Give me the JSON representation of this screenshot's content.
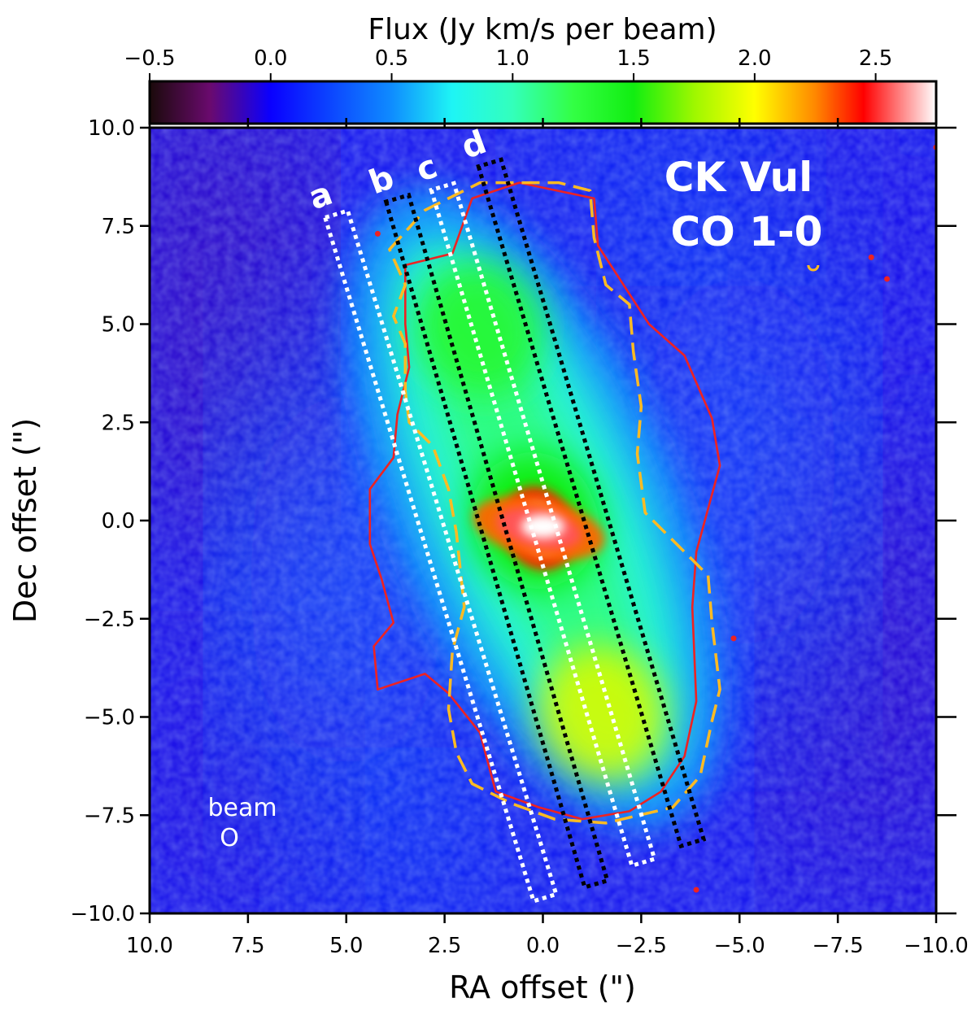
{
  "chart_data": {
    "type": "heatmap",
    "title": "CK Vul CO 1-0",
    "title_lines": [
      "CK Vul",
      "CO 1-0"
    ],
    "xlabel": "RA offset (\")",
    "ylabel": "Dec offset (\")",
    "xlim": [
      10.0,
      -10.0
    ],
    "ylim": [
      -10.0,
      10.0
    ],
    "x_ticks": [
      10.0,
      7.5,
      5.0,
      2.5,
      0.0,
      -2.5,
      -5.0,
      -7.5,
      -10.0
    ],
    "x_tick_labels": [
      "10.0",
      "7.5",
      "5.0",
      "2.5",
      "0.0",
      "−2.5",
      "−5.0",
      "−7.5",
      "−10.0"
    ],
    "y_ticks": [
      10.0,
      7.5,
      5.0,
      2.5,
      0.0,
      -2.5,
      -5.0,
      -7.5,
      -10.0
    ],
    "y_tick_labels": [
      "10.0",
      "7.5",
      "5.0",
      "2.5",
      "0.0",
      "−2.5",
      "−5.0",
      "−7.5",
      "−10.0"
    ],
    "colorbar": {
      "label": "Flux (Jy km/s per beam)",
      "range": [
        -0.5,
        2.75
      ],
      "ticks": [
        -0.5,
        0.0,
        0.5,
        1.0,
        1.5,
        2.0,
        2.5
      ],
      "tick_labels": [
        "−0.5",
        "0.0",
        "0.5",
        "1.0",
        "1.5",
        "2.0",
        "2.5"
      ],
      "stops": [
        {
          "v": -0.5,
          "color": "#1a0a0a"
        },
        {
          "v": -0.25,
          "color": "#6a0a6e"
        },
        {
          "v": 0.0,
          "color": "#0a00ff"
        },
        {
          "v": 0.5,
          "color": "#0f8cff"
        },
        {
          "v": 0.75,
          "color": "#1ef5f5"
        },
        {
          "v": 1.0,
          "color": "#33ffbb"
        },
        {
          "v": 1.25,
          "color": "#33ff44"
        },
        {
          "v": 1.5,
          "color": "#11ee11"
        },
        {
          "v": 1.75,
          "color": "#9ef700"
        },
        {
          "v": 2.0,
          "color": "#ffff00"
        },
        {
          "v": 2.25,
          "color": "#ff8800"
        },
        {
          "v": 2.45,
          "color": "#ff0000"
        },
        {
          "v": 2.75,
          "color": "#ffffff"
        }
      ]
    },
    "slits": [
      {
        "label": "a",
        "color": "#ffffff",
        "from": [
          5.25,
          7.8
        ],
        "to": [
          -0.05,
          -9.6
        ]
      },
      {
        "label": "b",
        "color": "#000000",
        "from": [
          3.7,
          8.2
        ],
        "to": [
          -1.35,
          -9.25
        ]
      },
      {
        "label": "c",
        "color": "#ffffff",
        "from": [
          2.55,
          8.5
        ],
        "to": [
          -2.55,
          -8.7
        ]
      },
      {
        "label": "d",
        "color": "#000000",
        "from": [
          1.35,
          9.1
        ],
        "to": [
          -3.8,
          -8.2
        ]
      }
    ],
    "slit_width_arcsec": 0.6,
    "beam": {
      "label": "beam",
      "symbol": "O",
      "x": 8.0,
      "y": -8.0,
      "major": 0.5,
      "minor": 0.45
    },
    "contours": [
      {
        "name": "red-contour",
        "color": "#ee2222",
        "style": "solid",
        "points": [
          [
            2.3,
            6.8
          ],
          [
            1.8,
            8.2
          ],
          [
            0.6,
            8.6
          ],
          [
            -1.3,
            8.2
          ],
          [
            -1.4,
            7.0
          ],
          [
            -2.7,
            5.0
          ],
          [
            -3.6,
            4.2
          ],
          [
            -4.3,
            2.6
          ],
          [
            -4.5,
            1.4
          ],
          [
            -3.9,
            -0.8
          ],
          [
            -3.8,
            -2.2
          ],
          [
            -3.9,
            -4.6
          ],
          [
            -3.6,
            -6.0
          ],
          [
            -3.0,
            -6.9
          ],
          [
            -2.2,
            -7.4
          ],
          [
            -1.0,
            -7.6
          ],
          [
            0.1,
            -7.3
          ],
          [
            1.2,
            -6.9
          ],
          [
            1.6,
            -5.4
          ],
          [
            2.4,
            -4.4
          ],
          [
            3.0,
            -3.9
          ],
          [
            4.2,
            -4.3
          ],
          [
            4.3,
            -3.2
          ],
          [
            3.8,
            -2.6
          ],
          [
            4.1,
            -1.5
          ],
          [
            4.4,
            -0.6
          ],
          [
            4.4,
            0.8
          ],
          [
            3.8,
            1.6
          ],
          [
            3.7,
            2.7
          ],
          [
            3.4,
            3.9
          ],
          [
            3.5,
            5.0
          ],
          [
            3.5,
            6.5
          ]
        ]
      },
      {
        "name": "yellow-dashed-contour",
        "color": "#ffbb22",
        "style": "dashed",
        "points": [
          [
            3.9,
            6.9
          ],
          [
            3.0,
            7.9
          ],
          [
            1.6,
            8.6
          ],
          [
            -0.4,
            8.6
          ],
          [
            -1.2,
            8.4
          ],
          [
            -1.3,
            7.2
          ],
          [
            -1.6,
            6.0
          ],
          [
            -2.2,
            5.5
          ],
          [
            -2.3,
            4.3
          ],
          [
            -2.5,
            2.9
          ],
          [
            -2.4,
            1.7
          ],
          [
            -2.6,
            0.2
          ],
          [
            -3.1,
            -0.3
          ],
          [
            -3.6,
            -0.8
          ],
          [
            -4.2,
            -1.4
          ],
          [
            -4.3,
            -2.6
          ],
          [
            -4.5,
            -4.3
          ],
          [
            -4.3,
            -5.1
          ],
          [
            -4.0,
            -6.5
          ],
          [
            -3.3,
            -7.3
          ],
          [
            -1.6,
            -7.7
          ],
          [
            -0.3,
            -7.6
          ],
          [
            0.8,
            -7.2
          ],
          [
            1.8,
            -6.7
          ],
          [
            2.2,
            -5.9
          ],
          [
            2.4,
            -4.8
          ],
          [
            2.3,
            -3.3
          ],
          [
            2.0,
            -2.2
          ],
          [
            2.2,
            -0.3
          ],
          [
            2.4,
            0.8
          ],
          [
            2.8,
            1.9
          ],
          [
            3.4,
            2.5
          ],
          [
            3.5,
            3.3
          ],
          [
            3.5,
            4.5
          ],
          [
            3.8,
            5.2
          ],
          [
            3.5,
            6.0
          ]
        ]
      }
    ],
    "emission_blobs": [
      {
        "x": 1.6,
        "y": 4.9,
        "sx": 1.6,
        "sy": 0.8,
        "v": 0.9
      },
      {
        "x": 0.2,
        "y": 0.0,
        "sx": 1.6,
        "sy": 0.8,
        "v": 1.0
      },
      {
        "x": -1.5,
        "y": -4.9,
        "sx": 1.6,
        "sy": 0.8,
        "v": 0.9
      },
      {
        "x": 0.1,
        "y": -0.2,
        "sx": 0.9,
        "sy": 0.5,
        "v": 0.9
      },
      {
        "x": 0.05,
        "y": -0.2,
        "sx": 0.5,
        "sy": 0.3,
        "v": 0.9
      }
    ],
    "peak_position": [
      0.1,
      -0.2
    ],
    "peak_flux": 2.75,
    "diffuse_level": 0.9,
    "background_level": 0.15
  }
}
